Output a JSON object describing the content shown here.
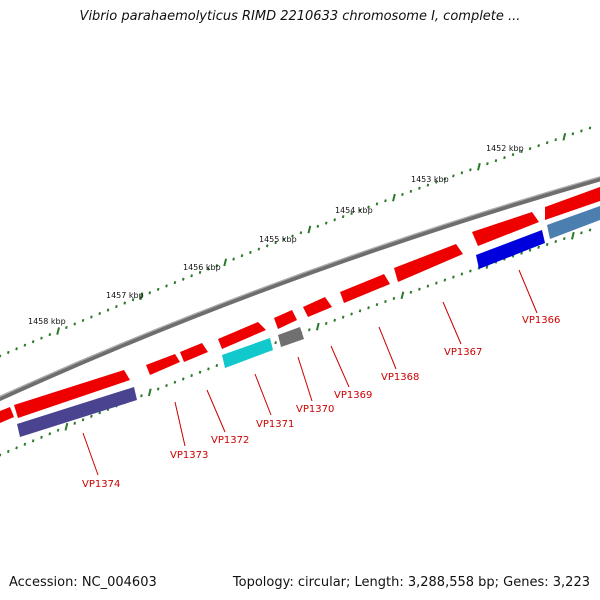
{
  "title": "Vibrio parahaemolyticus RIMD 2210633 chromosome I, complete ...",
  "footer": {
    "accession": "Accession: NC_004603",
    "topology": "Topology: circular; Length: 3,288,558 bp; Genes: 3,223"
  },
  "ruler_labels": [
    "1452 kbp",
    "1453 kbp",
    "1454 kbp",
    "1455 kbp",
    "1456 kbp",
    "1457 kbp",
    "1458 kbp"
  ],
  "gene_labels": [
    "VP1366",
    "VP1367",
    "VP1368",
    "VP1369",
    "VP1370",
    "VP1371",
    "VP1372",
    "VP1373",
    "VP1374"
  ],
  "colors": {
    "forward_gene": "#ee0000",
    "backbone": "#808080",
    "ticks": "#2a7a2a",
    "label": "#cc0000",
    "blue_gene": "#0000dd",
    "steelblue_gene": "#4a7fb0",
    "slate_gene": "#4a4490",
    "cyan_gene": "#11c8cc",
    "gray_gene": "#707070"
  }
}
